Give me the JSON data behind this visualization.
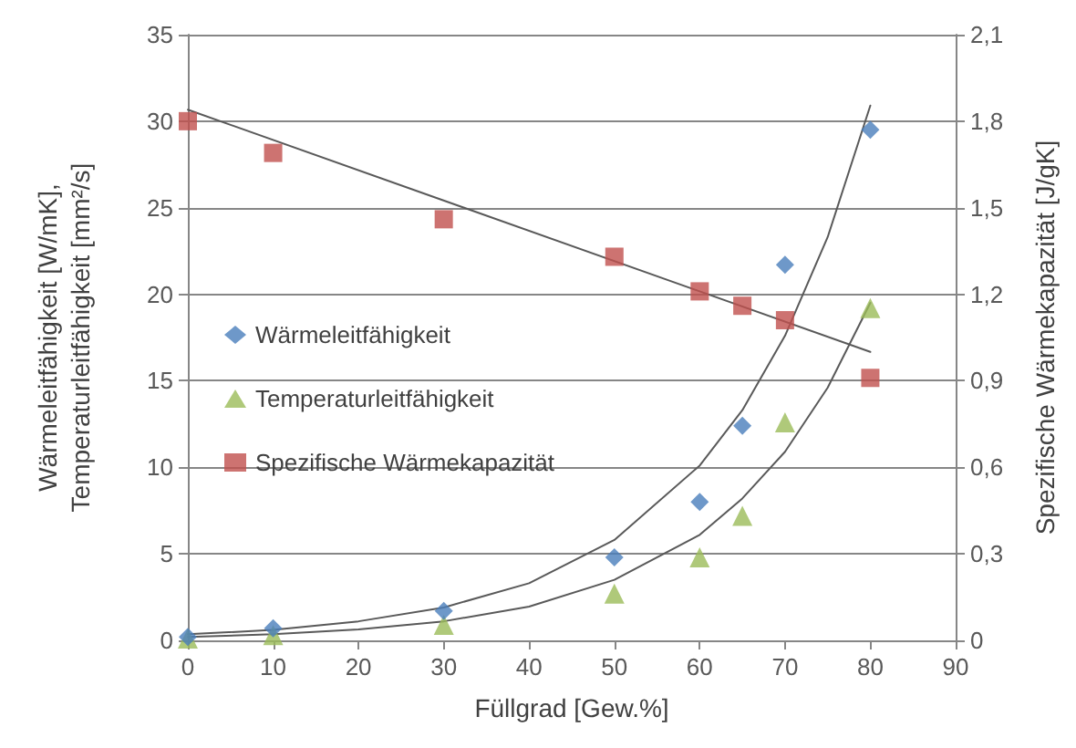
{
  "chart_data": {
    "type": "scatter",
    "xlabel": "Füllgrad [Gew.%]",
    "ylabel": "Wärmeleitfähigkeit [W/mK],\nTemperaturleitfähigkeit [mm²/s]",
    "y2label": "Spezifische Wärmekapazität [J/gK]",
    "x": [
      0,
      10,
      30,
      50,
      60,
      65,
      70,
      80
    ],
    "series": [
      {
        "name": "Wärmeleitfähigkeit",
        "color": "#4a7ebb",
        "marker": "diamond",
        "values": [
          0.2,
          0.7,
          1.7,
          4.8,
          8.0,
          12.4,
          21.7,
          29.5
        ]
      },
      {
        "name": "Temperaturleitfähigkeit",
        "color": "#9bbb59",
        "marker": "triangle",
        "values": [
          0.1,
          0.3,
          0.9,
          2.7,
          4.8,
          7.2,
          12.6,
          19.2
        ]
      },
      {
        "name": "Spezifische Wärmekapazität",
        "color": "#c0504d",
        "marker": "square",
        "axis": "y2",
        "values": [
          1.8,
          1.69,
          1.46,
          1.33,
          1.21,
          1.16,
          1.11,
          0.91
        ]
      },
      {
        "type": "line",
        "color": "#595959",
        "marker": "none",
        "x": [
          0,
          10,
          20,
          30,
          40,
          50,
          60,
          65,
          70,
          75,
          80
        ],
        "values": [
          0.35,
          0.6,
          1.1,
          1.9,
          3.3,
          5.8,
          10.1,
          13.3,
          17.6,
          23.3,
          30.9
        ]
      },
      {
        "type": "line",
        "color": "#595959",
        "marker": "none",
        "x": [
          0,
          10,
          20,
          30,
          40,
          50,
          60,
          65,
          70,
          75,
          80
        ],
        "values": [
          0.2,
          0.35,
          0.63,
          1.1,
          1.95,
          3.5,
          6.1,
          8.2,
          10.9,
          14.6,
          19.5
        ]
      },
      {
        "type": "line",
        "color": "#595959",
        "marker": "none",
        "axis": "y2",
        "x": [
          0,
          80
        ],
        "values": [
          1.84,
          1.0
        ]
      }
    ],
    "xlim": [
      0,
      90
    ],
    "xticks": [
      0,
      10,
      20,
      30,
      40,
      50,
      60,
      70,
      80,
      90
    ],
    "ylim": [
      0,
      35
    ],
    "yticks": [
      0,
      5,
      10,
      15,
      20,
      25,
      30,
      35
    ],
    "y2lim": [
      0,
      2.1
    ],
    "y2ticks": [
      0,
      {
        "value": 0.3,
        "label": "0,3"
      },
      {
        "value": 0.6,
        "label": "0,6"
      },
      {
        "value": 0.9,
        "label": "0,9"
      },
      {
        "value": 1.2,
        "label": "1,2"
      },
      {
        "value": 1.5,
        "label": "1,5"
      },
      {
        "value": 1.8,
        "label": "1,8"
      },
      {
        "value": 2.1,
        "label": "2,1"
      }
    ],
    "grid": "y",
    "legend": "left"
  }
}
